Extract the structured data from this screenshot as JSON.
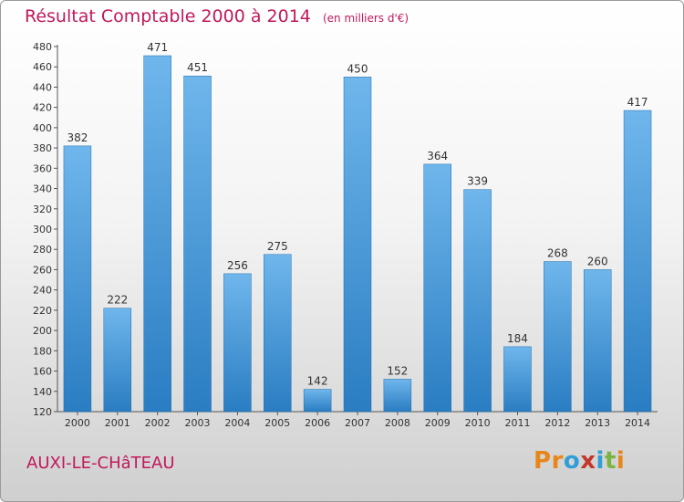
{
  "header": {
    "title": "Résultat Comptable 2000 à 2014",
    "unit_note": "(en milliers d'€)"
  },
  "footer": {
    "commune": "AUXI-LE-CHâTEAU",
    "logo_text": "Proxiti"
  },
  "colors": {
    "title": "#c2185b",
    "bar_light": "#6fb6ec",
    "bar_dark": "#2a7dc2",
    "logo": [
      "#e8861a",
      "#e8861a",
      "#2f9ed8",
      "#c0392b",
      "#2f9ed8",
      "#7cb342",
      "#e8861a"
    ]
  },
  "chart_data": {
    "type": "bar",
    "categories": [
      "2000",
      "2001",
      "2002",
      "2003",
      "2004",
      "2005",
      "2006",
      "2007",
      "2008",
      "2009",
      "2010",
      "2011",
      "2012",
      "2013",
      "2014"
    ],
    "values": [
      382,
      222,
      471,
      451,
      256,
      275,
      142,
      450,
      152,
      364,
      339,
      184,
      268,
      260,
      417
    ],
    "ylim": [
      120,
      480
    ],
    "ytick_step": 20,
    "grid": false,
    "legend": "none"
  }
}
